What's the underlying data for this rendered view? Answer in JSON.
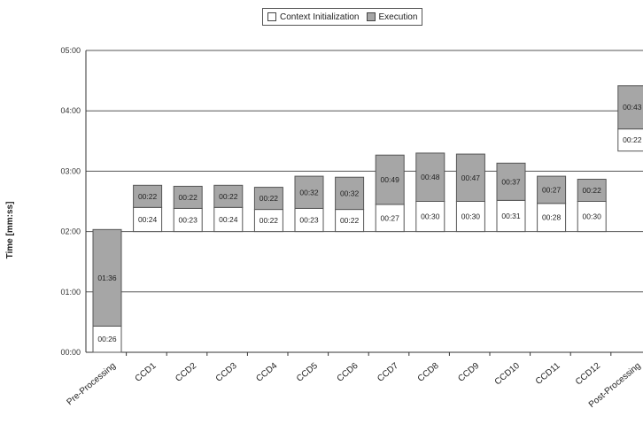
{
  "chart_data": {
    "type": "bar",
    "stacked": true,
    "waterfall": true,
    "title": "",
    "xlabel": "",
    "ylabel": "Time [mm:ss]",
    "ylim": [
      "00:00",
      "05:00"
    ],
    "yticks": [
      "00:00",
      "01:00",
      "02:00",
      "03:00",
      "04:00",
      "05:00"
    ],
    "grid": true,
    "legend_position": "top",
    "categories": [
      "Pre-Processing",
      "CCD1",
      "CCD2",
      "CCD3",
      "CCD4",
      "CCD5",
      "CCD6",
      "CCD7",
      "CCD8",
      "CCD9",
      "CCD10",
      "CCD11",
      "CCD12",
      "Post-Processing"
    ],
    "base_start": [
      "00:00",
      "02:00",
      "02:00",
      "02:00",
      "02:00",
      "02:00",
      "02:00",
      "02:00",
      "02:00",
      "02:00",
      "02:00",
      "02:00",
      "02:00",
      "03:20"
    ],
    "series": [
      {
        "name": "Context Initialization",
        "color": "#ffffff",
        "values": [
          "00:26",
          "00:24",
          "00:23",
          "00:24",
          "00:22",
          "00:23",
          "00:22",
          "00:27",
          "00:30",
          "00:30",
          "00:31",
          "00:28",
          "00:30",
          "00:22"
        ]
      },
      {
        "name": "Execution",
        "color": "#a6a6a6",
        "values": [
          "01:36",
          "00:22",
          "00:22",
          "00:22",
          "00:22",
          "00:32",
          "00:32",
          "00:49",
          "00:48",
          "00:47",
          "00:37",
          "00:27",
          "00:22",
          "00:43"
        ]
      }
    ]
  }
}
